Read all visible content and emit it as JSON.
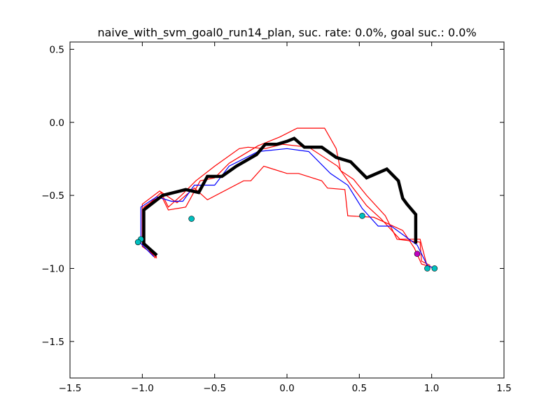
{
  "chart_data": {
    "type": "line",
    "title": "naive_with_svm_goal0_run14_plan, suc. rate: 0.0%, goal suc.: 0.0%",
    "xlabel": "",
    "ylabel": "",
    "xlim": [
      -1.5,
      1.5
    ],
    "ylim": [
      -1.75,
      0.55
    ],
    "grid": false,
    "legend": "none",
    "x_ticks": [
      -1.5,
      -1.0,
      -0.5,
      0.0,
      0.5,
      1.0,
      1.5
    ],
    "x_tick_labels": [
      "−1.5",
      "−1.0",
      "−0.5",
      "0.0",
      "0.5",
      "1.0",
      "1.5"
    ],
    "y_ticks": [
      0.5,
      0.0,
      -0.5,
      -1.0,
      -1.5
    ],
    "y_tick_labels": [
      "0.5",
      "0.0",
      "−0.5",
      "−1.0",
      "−1.5"
    ],
    "series": [
      {
        "color": "#ff0000",
        "width": 1.2,
        "points": [
          [
            -0.9,
            -0.92
          ],
          [
            -1.0,
            -0.85
          ],
          [
            -1.0,
            -0.56
          ],
          [
            -0.88,
            -0.47
          ],
          [
            -0.76,
            -0.55
          ],
          [
            -0.64,
            -0.45
          ],
          [
            -0.55,
            -0.53
          ],
          [
            -0.3,
            -0.4
          ],
          [
            -0.25,
            -0.4
          ],
          [
            -0.16,
            -0.3
          ],
          [
            0.0,
            -0.35
          ],
          [
            0.08,
            -0.35
          ],
          [
            0.24,
            -0.4
          ],
          [
            0.28,
            -0.45
          ],
          [
            0.4,
            -0.46
          ],
          [
            0.42,
            -0.64
          ],
          [
            0.6,
            -0.65
          ],
          [
            0.8,
            -0.74
          ],
          [
            0.88,
            -0.86
          ],
          [
            0.93,
            -0.97
          ],
          [
            1.0,
            -0.99
          ]
        ]
      },
      {
        "color": "#ff0000",
        "width": 1.2,
        "points": [
          [
            -0.9,
            -0.93
          ],
          [
            -0.99,
            -0.82
          ],
          [
            -0.99,
            -0.58
          ],
          [
            -0.87,
            -0.5
          ],
          [
            -0.82,
            -0.6
          ],
          [
            -0.7,
            -0.58
          ],
          [
            -0.6,
            -0.4
          ],
          [
            -0.5,
            -0.38
          ],
          [
            -0.4,
            -0.28
          ],
          [
            -0.3,
            -0.22
          ],
          [
            -0.2,
            -0.16
          ],
          [
            -0.05,
            -0.1
          ],
          [
            0.07,
            -0.04
          ],
          [
            0.26,
            -0.04
          ],
          [
            0.34,
            -0.18
          ],
          [
            0.37,
            -0.33
          ],
          [
            0.46,
            -0.39
          ],
          [
            0.55,
            -0.5
          ],
          [
            0.68,
            -0.64
          ],
          [
            0.76,
            -0.8
          ],
          [
            0.92,
            -0.82
          ],
          [
            0.93,
            -0.95
          ],
          [
            0.99,
            -0.98
          ]
        ]
      },
      {
        "color": "#ff0000",
        "width": 1.2,
        "points": [
          [
            -0.91,
            -0.93
          ],
          [
            -1.0,
            -0.81
          ],
          [
            -1.0,
            -0.6
          ],
          [
            -0.87,
            -0.48
          ],
          [
            -0.82,
            -0.58
          ],
          [
            -0.73,
            -0.5
          ],
          [
            -0.63,
            -0.4
          ],
          [
            -0.5,
            -0.3
          ],
          [
            -0.33,
            -0.18
          ],
          [
            -0.27,
            -0.17
          ],
          [
            -0.15,
            -0.18
          ],
          [
            -0.03,
            -0.15
          ],
          [
            0.15,
            -0.17
          ],
          [
            0.35,
            -0.3
          ],
          [
            0.45,
            -0.44
          ],
          [
            0.55,
            -0.57
          ],
          [
            0.65,
            -0.66
          ],
          [
            0.78,
            -0.8
          ],
          [
            0.92,
            -0.8
          ],
          [
            0.97,
            -0.99
          ]
        ]
      },
      {
        "color": "#0000ff",
        "width": 1.2,
        "points": [
          [
            -0.92,
            -0.92
          ],
          [
            -1.01,
            -0.83
          ],
          [
            -1.01,
            -0.58
          ],
          [
            -0.9,
            -0.51
          ],
          [
            -0.8,
            -0.54
          ],
          [
            -0.72,
            -0.54
          ],
          [
            -0.64,
            -0.43
          ],
          [
            -0.5,
            -0.43
          ],
          [
            -0.4,
            -0.3
          ],
          [
            -0.2,
            -0.2
          ],
          [
            0.0,
            -0.18
          ],
          [
            0.15,
            -0.2
          ],
          [
            0.3,
            -0.35
          ],
          [
            0.42,
            -0.43
          ],
          [
            0.52,
            -0.59
          ],
          [
            0.63,
            -0.71
          ],
          [
            0.72,
            -0.71
          ],
          [
            0.9,
            -0.84
          ],
          [
            0.97,
            -0.98
          ],
          [
            1.02,
            -1.0
          ]
        ]
      },
      {
        "color": "#000000",
        "width": 4.5,
        "points": [
          [
            -0.9,
            -0.91
          ],
          [
            -0.99,
            -0.83
          ],
          [
            -0.99,
            -0.6
          ],
          [
            -0.86,
            -0.5
          ],
          [
            -0.7,
            -0.46
          ],
          [
            -0.61,
            -0.48
          ],
          [
            -0.55,
            -0.37
          ],
          [
            -0.45,
            -0.37
          ],
          [
            -0.35,
            -0.3
          ],
          [
            -0.21,
            -0.22
          ],
          [
            -0.15,
            -0.15
          ],
          [
            -0.07,
            -0.15
          ],
          [
            0.0,
            -0.13
          ],
          [
            0.05,
            -0.11
          ],
          [
            0.12,
            -0.17
          ],
          [
            0.24,
            -0.17
          ],
          [
            0.34,
            -0.24
          ],
          [
            0.44,
            -0.27
          ],
          [
            0.55,
            -0.38
          ],
          [
            0.69,
            -0.32
          ],
          [
            0.77,
            -0.4
          ],
          [
            0.8,
            -0.52
          ],
          [
            0.83,
            -0.56
          ],
          [
            0.89,
            -0.63
          ],
          [
            0.89,
            -0.83
          ]
        ]
      }
    ],
    "markers": [
      {
        "x": -0.66,
        "y": -0.66,
        "color": "#00bfbf"
      },
      {
        "x": 0.52,
        "y": -0.64,
        "color": "#00bfbf"
      },
      {
        "x": -1.01,
        "y": -0.8,
        "color": "#00bfbf"
      },
      {
        "x": -1.03,
        "y": -0.82,
        "color": "#00bfbf"
      },
      {
        "x": 0.9,
        "y": -0.9,
        "color": "#bf00bf"
      },
      {
        "x": 0.97,
        "y": -1.0,
        "color": "#00bfbf"
      },
      {
        "x": 1.02,
        "y": -1.0,
        "color": "#00bfbf"
      }
    ]
  }
}
